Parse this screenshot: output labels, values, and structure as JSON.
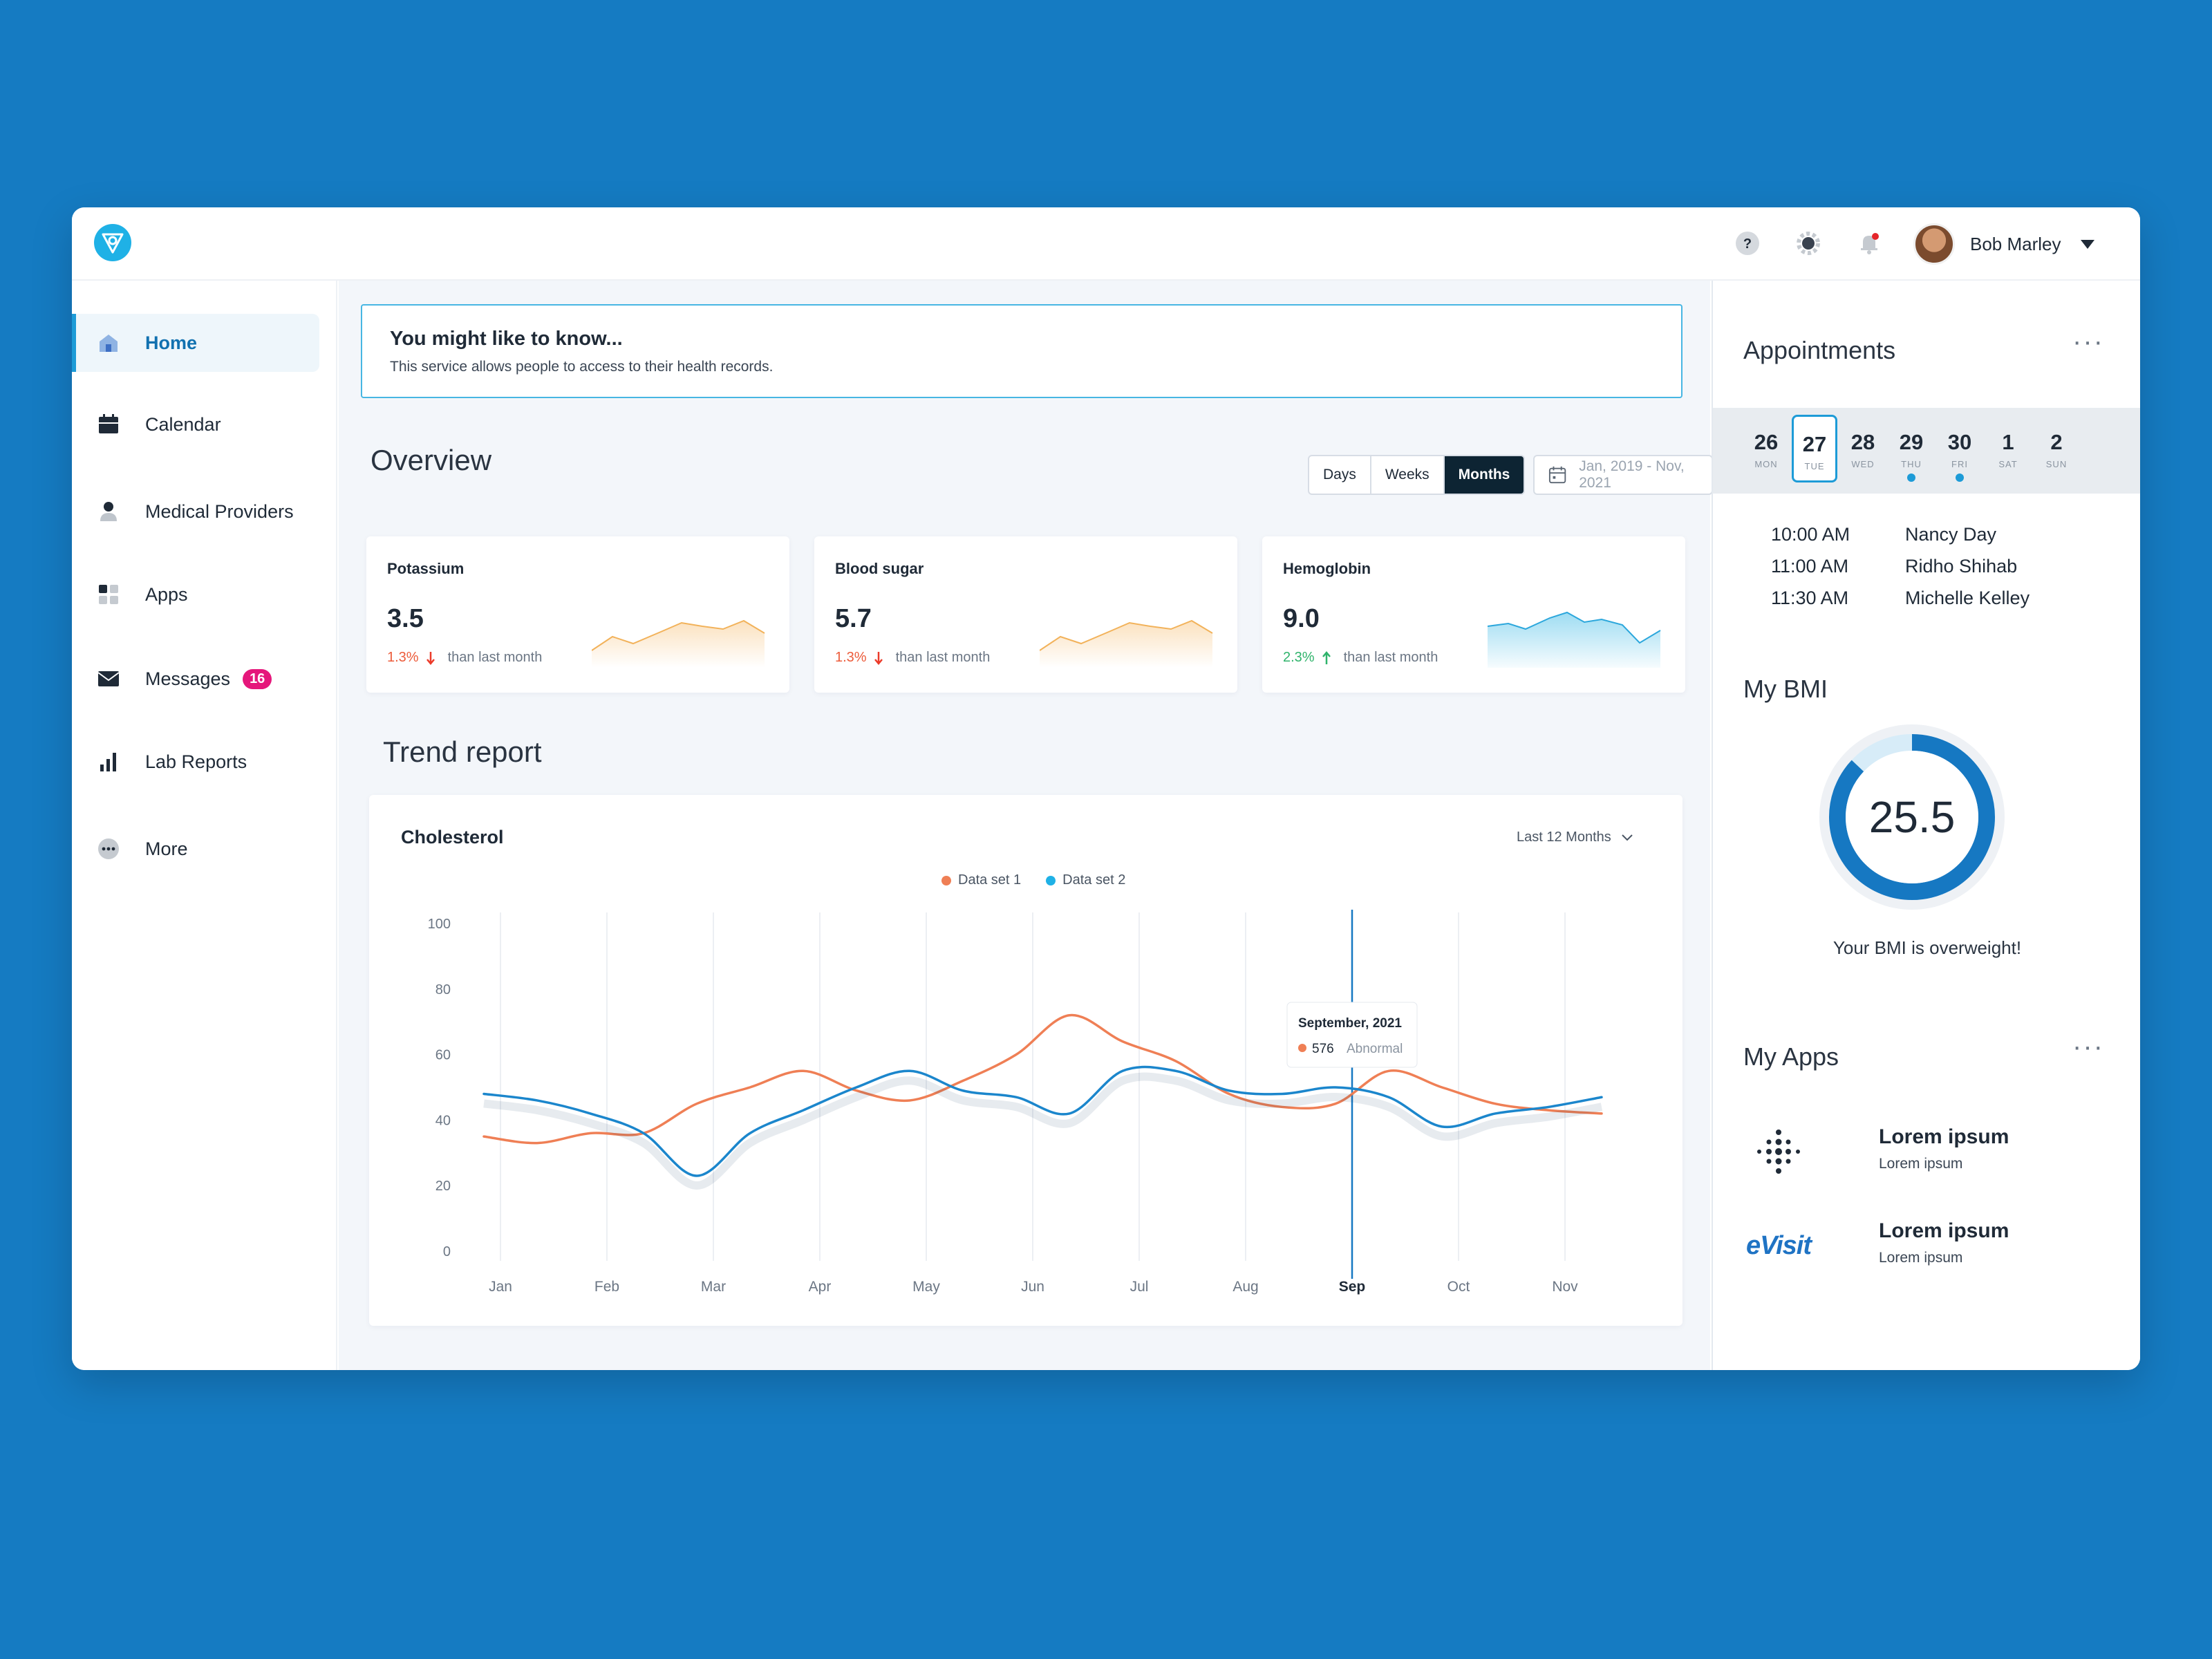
{
  "header": {
    "user_name": "Bob Marley"
  },
  "sidebar": {
    "items": [
      {
        "label": "Home",
        "icon": "home-icon"
      },
      {
        "label": "Calendar",
        "icon": "calendar-icon"
      },
      {
        "label": "Medical Providers",
        "icon": "person-icon"
      },
      {
        "label": "Apps",
        "icon": "apps-grid-icon"
      },
      {
        "label": "Messages",
        "icon": "envelope-icon",
        "badge": "16"
      },
      {
        "label": "Lab Reports",
        "icon": "bar-chart-icon"
      },
      {
        "label": "More",
        "icon": "more-icon"
      }
    ]
  },
  "banner": {
    "title": "You might like to know...",
    "text": "This service allows people to access to their health records."
  },
  "overview": {
    "title": "Overview",
    "segments": [
      "Days",
      "Weeks",
      "Months"
    ],
    "selected_segment": "Months",
    "date_range": "Jan, 2019 - Nov, 2021",
    "cards": [
      {
        "name": "Potassium",
        "value": "3.5",
        "delta": "1.3%",
        "direction": "down",
        "compare": "than last month",
        "color": "#f5b25a"
      },
      {
        "name": "Blood sugar",
        "value": "5.7",
        "delta": "1.3%",
        "direction": "down",
        "compare": "than last month",
        "color": "#f5b25a"
      },
      {
        "name": "Hemoglobin",
        "value": "9.0",
        "delta": "2.3%",
        "direction": "up",
        "compare": "than last month",
        "color": "#4fc0e8"
      }
    ]
  },
  "trend": {
    "title": "Trend report",
    "card_title": "Cholesterol",
    "range": "Last 12 Months",
    "tooltip": {
      "title": "September, 2021",
      "value": "576",
      "label": "Abnormal"
    }
  },
  "chart_data": {
    "type": "line",
    "title": "Cholesterol",
    "categories": [
      "Jan",
      "Feb",
      "Mar",
      "Apr",
      "May",
      "Jun",
      "Jul",
      "Aug",
      "Sep",
      "Oct",
      "Nov"
    ],
    "highlighted_category": "Sep",
    "x": [
      0,
      0.5,
      1,
      1.5,
      2,
      2.5,
      3,
      3.5,
      4,
      4.5,
      5,
      5.5,
      6,
      6.5,
      7,
      7.5,
      8,
      8.5,
      9,
      9.5,
      10,
      10.5
    ],
    "series": [
      {
        "name": "Data set 1",
        "color": "#ef7f55",
        "values": [
          35,
          33,
          36,
          36,
          45,
          50,
          55,
          49,
          46,
          52,
          60,
          72,
          64,
          58,
          48,
          44,
          45,
          55,
          50,
          45,
          43,
          42
        ]
      },
      {
        "name": "Data set 2",
        "color": "#1b86cc",
        "values": [
          48,
          46,
          42,
          36,
          23,
          36,
          43,
          50,
          55,
          49,
          47,
          42,
          55,
          55,
          49,
          48,
          50,
          47,
          38,
          42,
          44,
          47
        ]
      }
    ],
    "ylim": [
      0,
      100
    ],
    "yticks": [
      0,
      20,
      40,
      60,
      80,
      100
    ],
    "grid": "vertical",
    "legend": "top-center"
  },
  "right": {
    "appointments_title": "Appointments",
    "days": [
      {
        "num": "26",
        "name": "MON",
        "selected": false,
        "event": false
      },
      {
        "num": "27",
        "name": "TUE",
        "selected": true,
        "event": false
      },
      {
        "num": "28",
        "name": "WED",
        "selected": false,
        "event": false
      },
      {
        "num": "29",
        "name": "THU",
        "selected": false,
        "event": true
      },
      {
        "num": "30",
        "name": "FRI",
        "selected": false,
        "event": true
      },
      {
        "num": "1",
        "name": "SAT",
        "selected": false,
        "event": false
      },
      {
        "num": "2",
        "name": "SUN",
        "selected": false,
        "event": false
      }
    ],
    "appointments": [
      {
        "time": "10:00 AM",
        "name": "Nancy Day"
      },
      {
        "time": "11:00 AM",
        "name": "Ridho Shihab"
      },
      {
        "time": "11:30 AM",
        "name": "Michelle Kelley"
      }
    ],
    "bmi_title": "My BMI",
    "bmi_value": "25.5",
    "bmi_progress": 0.87,
    "bmi_note": "Your BMI is overweight!",
    "apps_title": "My Apps",
    "apps": [
      {
        "name": "Lorem ipsum",
        "sub": "Lorem ipsum",
        "logo": "fitbit-logo"
      },
      {
        "name": "Lorem ipsum",
        "sub": "Lorem ipsum",
        "logo": "evisit-logo",
        "logo_text": "eVisit"
      }
    ]
  }
}
